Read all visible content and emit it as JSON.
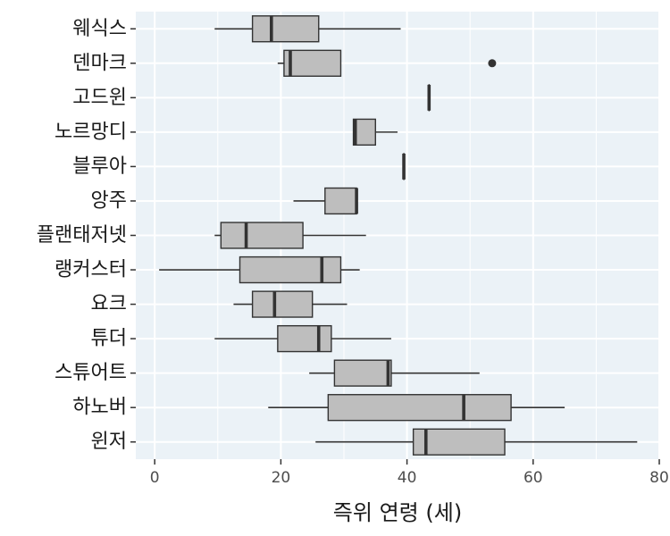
{
  "chart_data": {
    "type": "boxplot",
    "orientation": "horizontal",
    "xlabel": "즉위 연령 (세)",
    "ylabel": "",
    "xlim": [
      -3,
      80
    ],
    "xticks": [
      0,
      20,
      40,
      60,
      80
    ],
    "grid": true,
    "colors": {
      "panel": "#ebf2f7",
      "grid": "#ffffff",
      "box_fill": "#bebebe",
      "stroke": "#333333",
      "tick": "#333333"
    },
    "categories": [
      "웨식스",
      "덴마크",
      "고드윈",
      "노르망디",
      "블루아",
      "앙주",
      "플랜태저넷",
      "랭커스터",
      "요크",
      "튜더",
      "스튜어트",
      "하노버",
      "윈저"
    ],
    "boxes": [
      {
        "whisker_low": 9.5,
        "q1": 15.5,
        "median": 18.5,
        "q3": 26,
        "whisker_high": 39,
        "outliers": []
      },
      {
        "whisker_low": 19.5,
        "q1": 20.5,
        "median": 21.5,
        "q3": 29.5,
        "whisker_high": 29.5,
        "outliers": [
          53.5
        ]
      },
      {
        "whisker_low": 43.5,
        "q1": 43.5,
        "median": 43.5,
        "q3": 43.5,
        "whisker_high": 43.5,
        "outliers": []
      },
      {
        "whisker_low": 31.5,
        "q1": 31.5,
        "median": 31.8,
        "q3": 35,
        "whisker_high": 38.5,
        "outliers": []
      },
      {
        "whisker_low": 39.5,
        "q1": 39.5,
        "median": 39.5,
        "q3": 39.5,
        "whisker_high": 39.5,
        "outliers": []
      },
      {
        "whisker_low": 22,
        "q1": 27,
        "median": 32,
        "q3": 32,
        "whisker_high": 32,
        "outliers": []
      },
      {
        "whisker_low": 9.5,
        "q1": 10.5,
        "median": 14.5,
        "q3": 23.5,
        "whisker_high": 33.5,
        "outliers": []
      },
      {
        "whisker_low": 0.7,
        "q1": 13.5,
        "median": 26.5,
        "q3": 29.5,
        "whisker_high": 32.5,
        "outliers": []
      },
      {
        "whisker_low": 12.5,
        "q1": 15.5,
        "median": 19,
        "q3": 25,
        "whisker_high": 30.5,
        "outliers": []
      },
      {
        "whisker_low": 9.5,
        "q1": 19.5,
        "median": 26,
        "q3": 28,
        "whisker_high": 37.5,
        "outliers": []
      },
      {
        "whisker_low": 24.5,
        "q1": 28.5,
        "median": 37,
        "q3": 37.5,
        "whisker_high": 51.5,
        "outliers": []
      },
      {
        "whisker_low": 18,
        "q1": 27.5,
        "median": 49,
        "q3": 56.5,
        "whisker_high": 65,
        "outliers": []
      },
      {
        "whisker_low": 25.5,
        "q1": 41,
        "median": 43,
        "q3": 55.5,
        "whisker_high": 76.5,
        "outliers": []
      }
    ]
  }
}
